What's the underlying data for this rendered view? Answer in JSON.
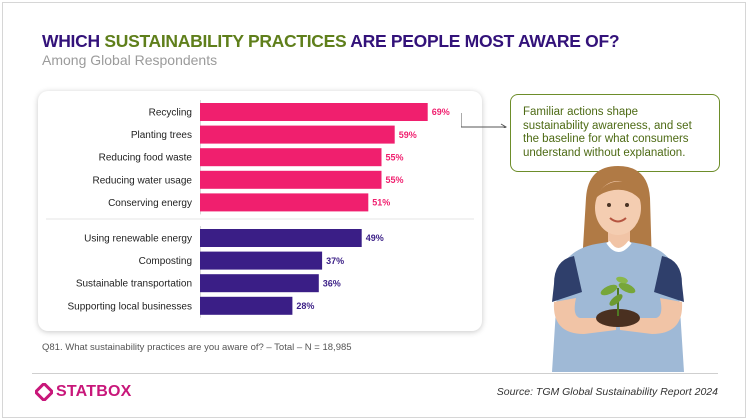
{
  "header": {
    "title_parts": [
      {
        "text": "WHICH ",
        "color": "purple"
      },
      {
        "text": "SUSTAINABILITY PRACTICES",
        "color": "green"
      },
      {
        "text": " ARE ",
        "color": "purple"
      },
      {
        "text": "PEOPLE MOST AWARE OF?",
        "color": "purple"
      }
    ],
    "subtitle": "Among Global Respondents"
  },
  "chart_data": {
    "type": "bar",
    "orientation": "horizontal",
    "categories": [
      "Recycling",
      "Planting trees",
      "Reducing food waste",
      "Reducing water usage",
      "Conserving energy",
      "Using renewable energy",
      "Composting",
      "Sustainable transportation",
      "Supporting local businesses"
    ],
    "values": [
      69,
      59,
      55,
      55,
      51,
      49,
      37,
      36,
      28
    ],
    "value_suffix": "%",
    "groups": [
      {
        "indices": [
          0,
          1,
          2,
          3,
          4
        ],
        "color": "#f01f6e"
      },
      {
        "indices": [
          5,
          6,
          7,
          8
        ],
        "color": "#3a1e86"
      }
    ],
    "xlim": [
      0,
      100
    ],
    "grid": false,
    "legend": "none"
  },
  "callout": {
    "text": "Familiar actions shape sustainability awareness, and set the baseline for what consumers understand without explanation."
  },
  "footer": {
    "question": "Q81. What sustainability practices are you aware of? – Total – N = 18,985",
    "brand": "STATBOX",
    "source": "Source: TGM Global Sustainability Report 2024"
  },
  "colors": {
    "purple": "#33127a",
    "green": "#5f7f1b",
    "pink": "#f01f6e",
    "indigo": "#3a1e86",
    "brand": "#c8177a"
  }
}
